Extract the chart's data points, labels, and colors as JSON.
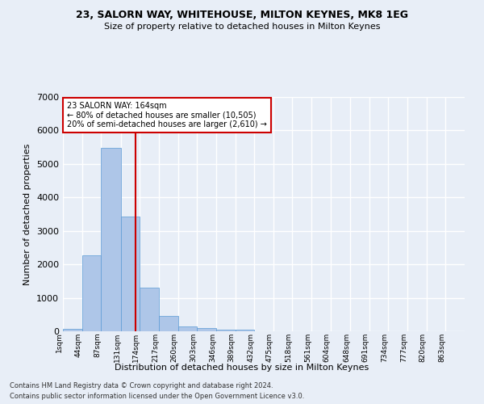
{
  "title": "23, SALORN WAY, WHITEHOUSE, MILTON KEYNES, MK8 1EG",
  "subtitle": "Size of property relative to detached houses in Milton Keynes",
  "xlabel": "Distribution of detached houses by size in Milton Keynes",
  "ylabel": "Number of detached properties",
  "footnote1": "Contains HM Land Registry data © Crown copyright and database right 2024.",
  "footnote2": "Contains public sector information licensed under the Open Government Licence v3.0.",
  "annotation_title": "23 SALORN WAY: 164sqm",
  "annotation_line1": "← 80% of detached houses are smaller (10,505)",
  "annotation_line2": "20% of semi-detached houses are larger (2,610) →",
  "bar_color": "#aec6e8",
  "bar_edge_color": "#5b9bd5",
  "vline_x": 164,
  "vline_color": "#cc0000",
  "ylim": [
    0,
    7000
  ],
  "categories": [
    "1sqm",
    "44sqm",
    "87sqm",
    "131sqm",
    "174sqm",
    "217sqm",
    "260sqm",
    "303sqm",
    "346sqm",
    "389sqm",
    "432sqm",
    "475sqm",
    "518sqm",
    "561sqm",
    "604sqm",
    "648sqm",
    "691sqm",
    "734sqm",
    "777sqm",
    "820sqm",
    "863sqm"
  ],
  "bin_edges": [
    1,
    44,
    87,
    131,
    174,
    217,
    260,
    303,
    346,
    389,
    432,
    475,
    518,
    561,
    604,
    648,
    691,
    734,
    777,
    820,
    863,
    906
  ],
  "bar_heights": [
    80,
    2280,
    5480,
    3430,
    1310,
    460,
    155,
    85,
    55,
    40,
    0,
    0,
    0,
    0,
    0,
    0,
    0,
    0,
    0,
    0,
    0
  ],
  "background_color": "#e8eef7",
  "grid_color": "#ffffff",
  "annotation_box_color": "#ffffff",
  "annotation_box_edge": "#cc0000"
}
